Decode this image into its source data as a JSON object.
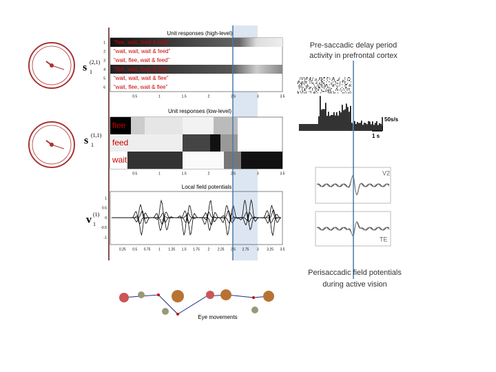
{
  "high_level": {
    "title": "Unit responses (high-level)",
    "symbol": "s",
    "sup": "(2,1)",
    "sub": "1",
    "rows": [
      {
        "index": "1",
        "label": "“flee, wait, feed & wait”"
      },
      {
        "index": "2",
        "label": "“wait, wait, wait & feed”"
      },
      {
        "index": "3",
        "label": "“wait, flee, wait & feed”"
      },
      {
        "index": "4",
        "label": "“flee, wait, feed & flee”"
      },
      {
        "index": "5",
        "label": "“wait, wait, wait & flee”"
      },
      {
        "index": "6",
        "label": "“wait, flee, wait & flee”"
      }
    ],
    "xticks": [
      0.5,
      1,
      1.5,
      2,
      2.5,
      3,
      3.5
    ]
  },
  "low_level": {
    "title": "Unit responses (low-level)",
    "symbol": "s",
    "sup": "(1,1)",
    "sub": "1",
    "rows": [
      "flee",
      "feed",
      "wait"
    ],
    "xticks": [
      0.5,
      1,
      1.5,
      2,
      2.5,
      3,
      3.5
    ]
  },
  "lfp": {
    "title": "Local field potentials",
    "symbol": "v",
    "sup": "(1)",
    "sub": "1",
    "yticks": [
      1,
      0.5,
      0,
      -0.5,
      -1
    ],
    "xticks": [
      0.25,
      0.5,
      0.75,
      1,
      1.25,
      1.5,
      1.75,
      2,
      2.25,
      2.5,
      2.75,
      3,
      3.25,
      3.5
    ]
  },
  "prefrontal": {
    "lines": [
      "Pre-saccadic delay period",
      "activity in prefrontal cortex"
    ],
    "rate_scale": "50s/s",
    "time_scale": "1 s"
  },
  "perisaccadic": {
    "panels": [
      "V2",
      "TE"
    ],
    "lines": [
      "Perisaccadic field potentials",
      "during active vision"
    ]
  },
  "eye_movements": "Eye movements"
}
